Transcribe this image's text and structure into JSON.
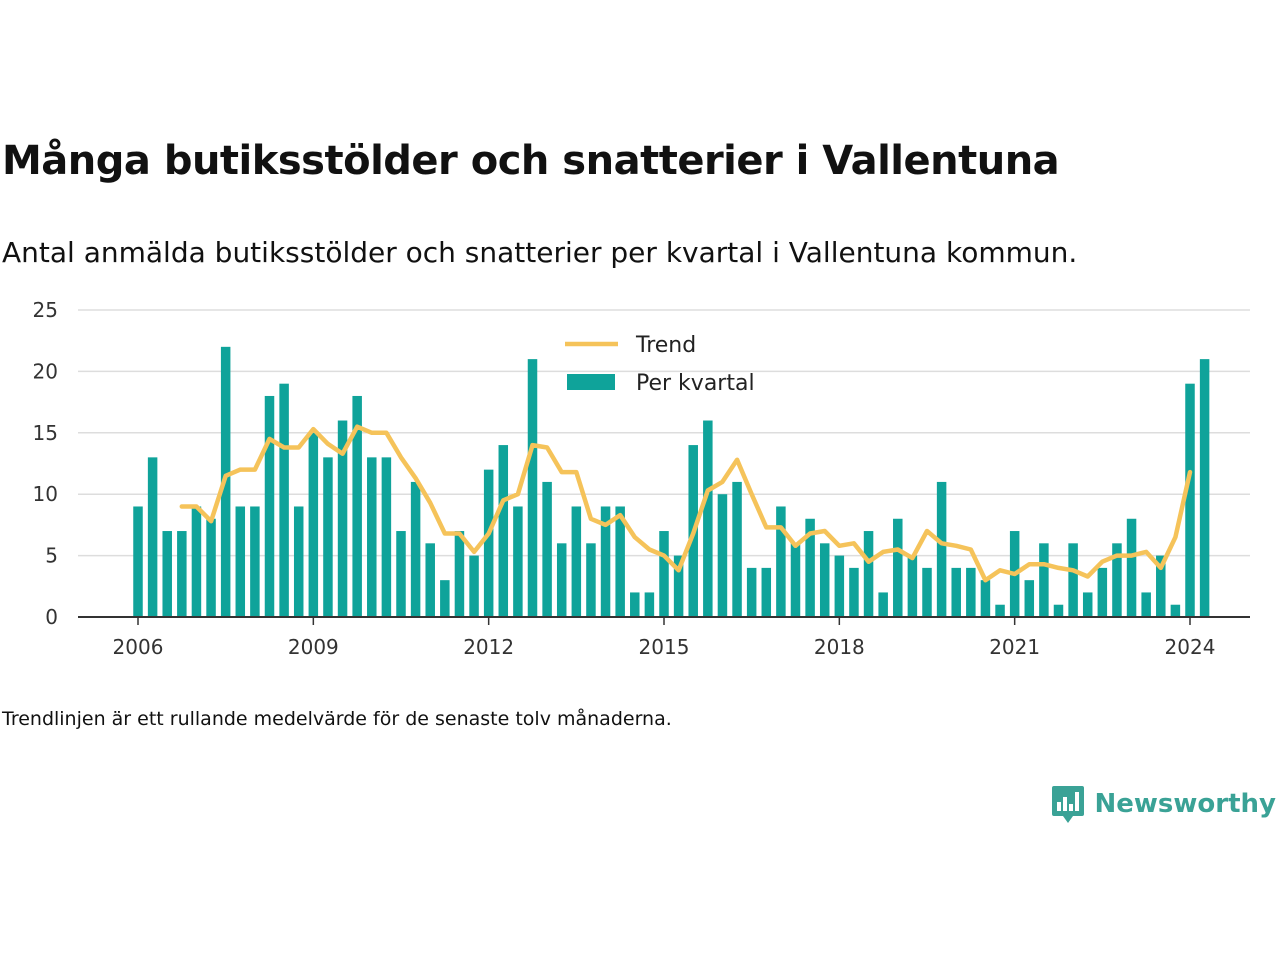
{
  "header": {
    "title": "Många butiksstölder och snatterier i Vallentuna",
    "subtitle": "Antal anmälda butiksstölder och snatterier per kvartal i Vallentuna kommun."
  },
  "footnote": "Trendlinjen är ett rullande medelvärde för de senaste tolv månaderna.",
  "brand": {
    "name": "Newsworthy",
    "icon": "bar-chart-bubble-icon",
    "color": "#3aa296"
  },
  "colors": {
    "bar": "#0fa39a",
    "trend": "#f5c35a",
    "grid": "#dddddd",
    "axis": "#333333"
  },
  "chart_data": {
    "type": "bar",
    "x_unit": "year",
    "xlim": [
      2005,
      2025
    ],
    "ylim": [
      0,
      25
    ],
    "y_ticks": [
      0,
      5,
      10,
      15,
      20,
      25
    ],
    "x_ticks": [
      2006,
      2009,
      2012,
      2015,
      2018,
      2021,
      2024
    ],
    "grid": true,
    "legend_position": "top-center",
    "series": [
      {
        "name": "Per kvartal",
        "type": "bar",
        "start": 2006,
        "step": 0.25,
        "values": [
          9,
          13,
          7,
          7,
          9,
          8,
          22,
          9,
          9,
          18,
          19,
          9,
          15,
          13,
          16,
          18,
          13,
          13,
          7,
          11,
          6,
          3,
          7,
          5,
          12,
          14,
          9,
          21,
          11,
          6,
          9,
          6,
          9,
          9,
          2,
          2,
          7,
          5,
          14,
          16,
          10,
          11,
          4,
          4,
          9,
          6,
          8,
          6,
          5,
          4,
          7,
          2,
          8,
          5,
          4,
          11,
          4,
          4,
          3,
          1,
          7,
          3,
          6,
          1,
          6,
          2,
          4,
          6,
          8,
          2,
          5,
          1,
          19,
          21
        ]
      },
      {
        "name": "Trend",
        "type": "line",
        "start": 2006.75,
        "step": 0.25,
        "values": [
          9,
          9,
          7.8,
          11.5,
          12,
          12,
          14.5,
          13.8,
          13.8,
          15.3,
          14.1,
          13.3,
          15.5,
          15,
          15,
          13,
          11.3,
          9.3,
          6.8,
          6.8,
          5.3,
          6.8,
          9.5,
          10,
          14,
          13.8,
          11.8,
          11.8,
          8,
          7.5,
          8.3,
          6.5,
          5.5,
          5,
          3.8,
          6.8,
          10.3,
          11,
          12.8,
          10,
          7.3,
          7.3,
          5.8,
          6.8,
          7,
          5.8,
          6,
          4.5,
          5.3,
          5.5,
          4.8,
          7,
          6,
          5.8,
          5.5,
          3,
          3.8,
          3.5,
          4.3,
          4.3,
          4,
          3.8,
          3.3,
          4.5,
          5,
          5,
          5.3,
          4,
          6.5,
          11.8
        ]
      }
    ]
  }
}
